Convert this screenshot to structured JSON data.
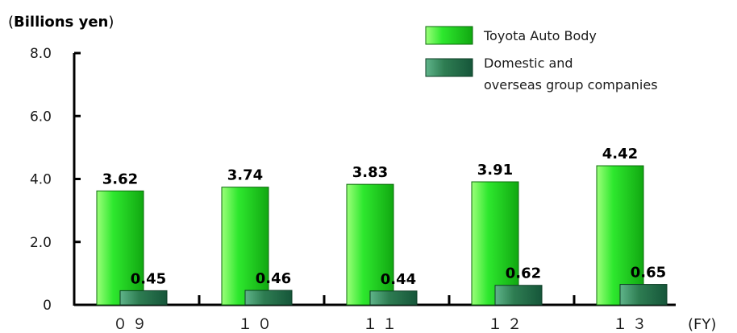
{
  "chart_data": {
    "type": "bar",
    "unit_label": "Billions yen",
    "xlabel": "(FY)",
    "categories": [
      "０９",
      "１０",
      "１１",
      "１２",
      "１３"
    ],
    "ylim": [
      0,
      8.0
    ],
    "y_ticks": [
      "0",
      "2.0",
      "4.0",
      "6.0",
      "8.0"
    ],
    "y_tick_values": [
      0,
      2,
      4,
      6,
      8
    ],
    "legend_position": "top-right",
    "series": [
      {
        "name": "Toyota Auto Body",
        "values": [
          3.62,
          3.74,
          3.83,
          3.91,
          4.42
        ],
        "labels": [
          "3.62",
          "3.74",
          "3.83",
          "3.91",
          "4.42"
        ],
        "color": "#22dd22"
      },
      {
        "name": "Domestic and overseas group companies",
        "values": [
          0.45,
          0.46,
          0.44,
          0.62,
          0.65
        ],
        "labels": [
          "0.45",
          "0.46",
          "0.44",
          "0.62",
          "0.65"
        ],
        "color": "#2e7d52"
      }
    ],
    "legend": {
      "series1_label": "Toyota Auto Body",
      "series2_label_line1": "Domestic and",
      "series2_label_line2": "overseas group companies"
    }
  }
}
